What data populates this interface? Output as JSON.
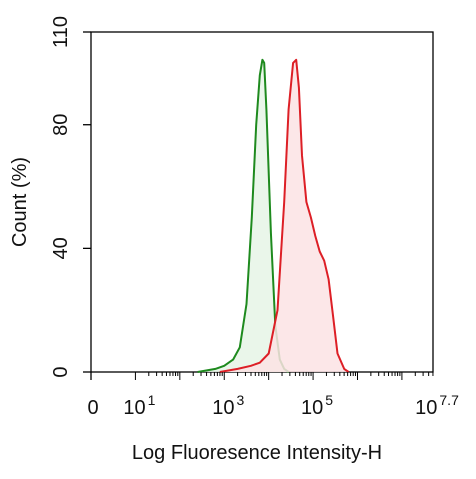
{
  "chart_data": {
    "type": "area",
    "xlabel": "Log Fluoresence Intensity-H",
    "ylabel": "Count  (%)",
    "x_scale": "log",
    "xlim": [
      0,
      7.7
    ],
    "ylim": [
      0,
      110
    ],
    "y_ticks": [
      {
        "value": 0,
        "label": "0"
      },
      {
        "value": 40,
        "label": "40"
      },
      {
        "value": 80,
        "label": "80"
      },
      {
        "value": 110,
        "label": "110"
      }
    ],
    "x_ticks": [
      {
        "value": 0,
        "label": "0",
        "sup": ""
      },
      {
        "value": 1,
        "label": "10",
        "sup": "1"
      },
      {
        "value": 3,
        "label": "10",
        "sup": "3"
      },
      {
        "value": 5,
        "label": "10",
        "sup": "5"
      },
      {
        "value": 7.7,
        "label": "10",
        "sup": "7.7"
      }
    ],
    "grid": false,
    "series": [
      {
        "line_color": "#1e8a1e",
        "fill_color": "#e6f4e6",
        "x": [
          2.4,
          2.8,
          3.0,
          3.2,
          3.35,
          3.5,
          3.62,
          3.72,
          3.8,
          3.86,
          3.9,
          3.95,
          4.05,
          4.15,
          4.25,
          4.35,
          4.45
        ],
        "y": [
          0,
          1,
          2,
          4,
          8,
          22,
          50,
          80,
          96,
          101,
          100,
          85,
          45,
          15,
          4,
          1,
          0
        ]
      },
      {
        "line_color": "#dd1f26",
        "fill_color": "#fbe3e4",
        "x": [
          2.9,
          3.3,
          3.6,
          3.8,
          4.0,
          4.2,
          4.35,
          4.45,
          4.55,
          4.62,
          4.68,
          4.75,
          4.85,
          4.95,
          5.05,
          5.15,
          5.25,
          5.35,
          5.45,
          5.55,
          5.7,
          5.8
        ],
        "y": [
          0,
          1,
          2,
          3,
          6,
          20,
          55,
          85,
          100,
          101,
          92,
          70,
          55,
          50,
          44,
          39,
          36,
          30,
          18,
          6,
          1,
          0
        ]
      }
    ]
  }
}
